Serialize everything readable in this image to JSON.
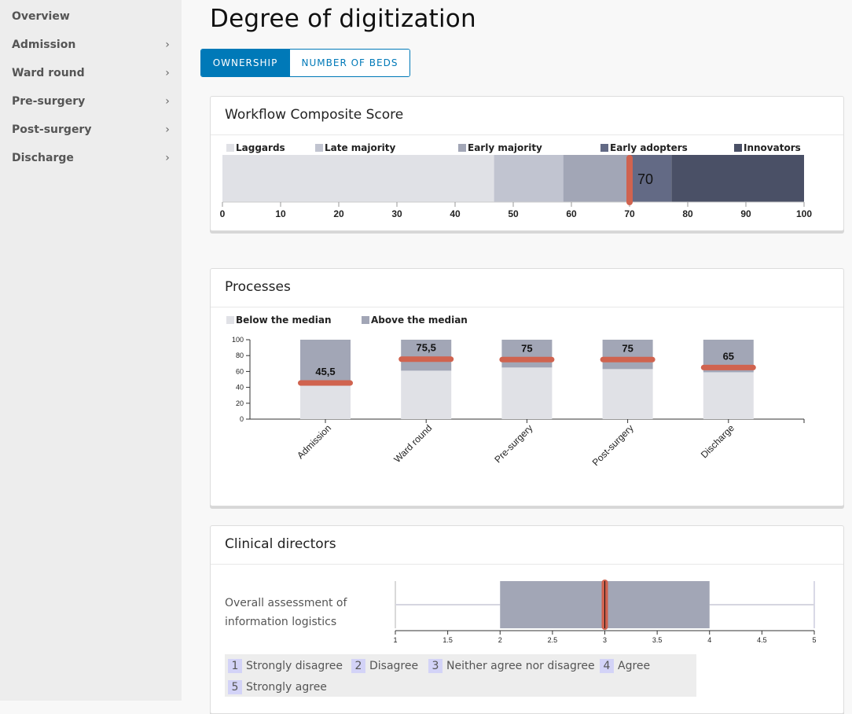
{
  "sidebar": {
    "items": [
      {
        "label": "Overview",
        "has_chevron": false
      },
      {
        "label": "Admission",
        "has_chevron": true
      },
      {
        "label": "Ward round",
        "has_chevron": true
      },
      {
        "label": "Pre-surgery",
        "has_chevron": true
      },
      {
        "label": "Post-surgery",
        "has_chevron": true
      },
      {
        "label": "Discharge",
        "has_chevron": true
      }
    ],
    "chevron_glyph": "›"
  },
  "page": {
    "title": "Degree of digitization",
    "toggle": {
      "options": [
        "OWNERSHIP",
        "NUMBER OF BEDS"
      ],
      "selected": "OWNERSHIP"
    }
  },
  "colors": {
    "accent": "#0079b8",
    "marker": "#d0634f",
    "laggards": "#e0e1e6",
    "late_majority": "#c1c4d0",
    "early_majority": "#a2a6b6",
    "early_adopters": "#636a85",
    "innovators": "#4a5066",
    "below_median": "#e0e1e6",
    "above_median": "#a2a6b6",
    "scale_badge": "#d3d3f7"
  },
  "chart_data": [
    {
      "id": "composite",
      "type": "bar",
      "orientation": "horizontal-stacked",
      "title": "Workflow Composite Score",
      "legend": [
        "Laggards",
        "Late majority",
        "Early majority",
        "Early adopters",
        "Innovators"
      ],
      "legend_position": "top",
      "segments": [
        {
          "name": "Laggards",
          "from": 0,
          "to": 46.7
        },
        {
          "name": "Late majority",
          "from": 46.7,
          "to": 58.6
        },
        {
          "name": "Early majority",
          "from": 58.6,
          "to": 70
        },
        {
          "name": "Early adopters",
          "from": 70,
          "to": 77.2
        },
        {
          "name": "Innovators",
          "from": 77.2,
          "to": 100
        }
      ],
      "marker_value": 70,
      "marker_label": "70",
      "xlim": [
        0,
        100
      ],
      "xticks": [
        "0",
        "10",
        "20",
        "30",
        "40",
        "50",
        "60",
        "70",
        "80",
        "90",
        "100"
      ]
    },
    {
      "id": "processes",
      "type": "bar",
      "orientation": "vertical-stacked",
      "title": "Processes",
      "legend": [
        "Below the median",
        "Above the median"
      ],
      "legend_position": "top-left",
      "categories": [
        "Admission",
        "Ward round",
        "Pre-surgery",
        "Post-surgery",
        "Discharge"
      ],
      "series": [
        {
          "name": "Below the median",
          "values": [
            42,
            61,
            65,
            63,
            59
          ]
        },
        {
          "name": "Above the median",
          "values": [
            58,
            39,
            35,
            37,
            41
          ]
        }
      ],
      "marker_values": [
        45.5,
        75.5,
        75,
        75,
        65
      ],
      "marker_labels": [
        "45,5",
        "75,5",
        "75",
        "75",
        "65"
      ],
      "ylim": [
        0,
        100
      ],
      "yticks": [
        "0",
        "20",
        "40",
        "60",
        "80",
        "100"
      ]
    },
    {
      "id": "clinical_directors",
      "type": "boxplot",
      "title": "Clinical directors",
      "row_label_lines": [
        "Overall assessment of",
        "information logistics"
      ],
      "min": 1,
      "q1": 2,
      "median": 3,
      "q3": 4,
      "max": 5,
      "xlim": [
        1,
        5
      ],
      "xticks": [
        "1",
        "1.5",
        "2",
        "2.5",
        "3",
        "3.5",
        "4",
        "4.5",
        "5"
      ],
      "scale_legend": [
        {
          "num": "1",
          "label": "Strongly disagree"
        },
        {
          "num": "2",
          "label": "Disagree"
        },
        {
          "num": "3",
          "label": "Neither agree nor disagree"
        },
        {
          "num": "4",
          "label": "Agree"
        },
        {
          "num": "5",
          "label": "Strongly agree"
        }
      ]
    }
  ]
}
